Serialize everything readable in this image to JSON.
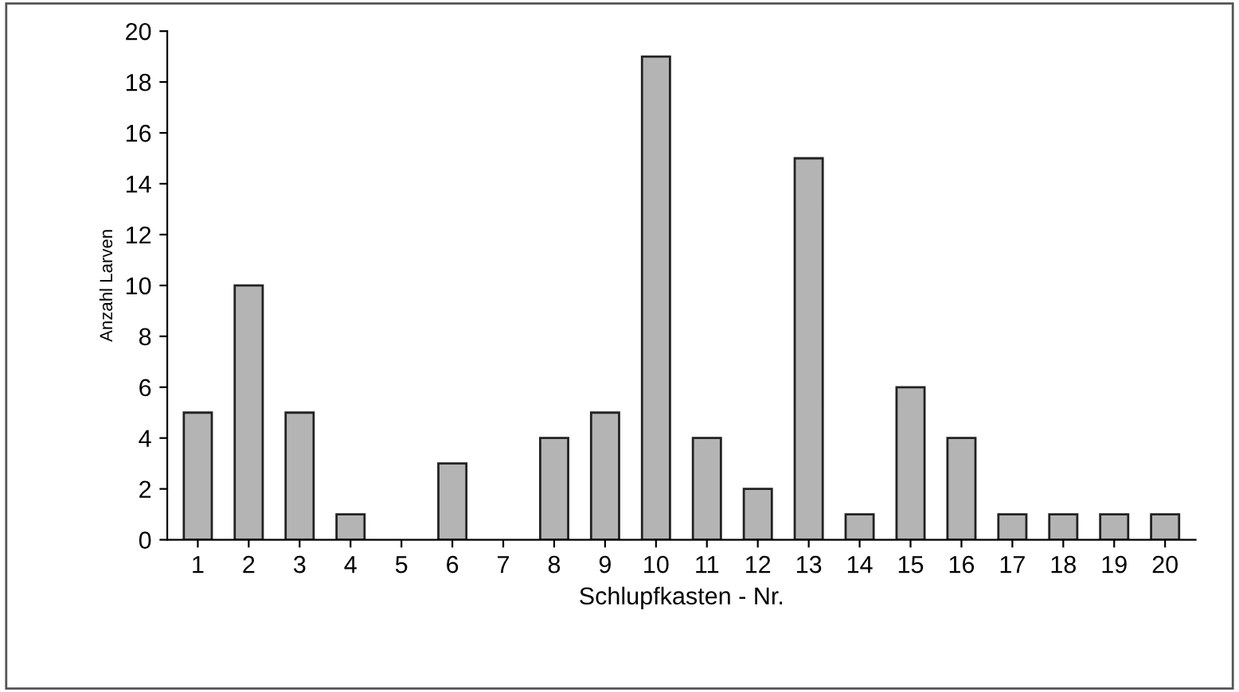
{
  "chart_data": {
    "type": "bar",
    "xlabel": "Schlupfkasten - Nr.",
    "ylabel": "Anzahl Larven",
    "categories": [
      "1",
      "2",
      "3",
      "4",
      "5",
      "6",
      "7",
      "8",
      "9",
      "10",
      "11",
      "12",
      "13",
      "14",
      "15",
      "16",
      "17",
      "18",
      "19",
      "20"
    ],
    "values": [
      5,
      10,
      5,
      1,
      0,
      3,
      0,
      4,
      5,
      19,
      4,
      2,
      15,
      1,
      6,
      4,
      1,
      1,
      1,
      1
    ],
    "color": "#b4b4b4",
    "ylim": [
      0,
      20
    ],
    "yticks": [
      0,
      2,
      4,
      6,
      8,
      10,
      12,
      14,
      16,
      18,
      20
    ],
    "grid": false
  }
}
